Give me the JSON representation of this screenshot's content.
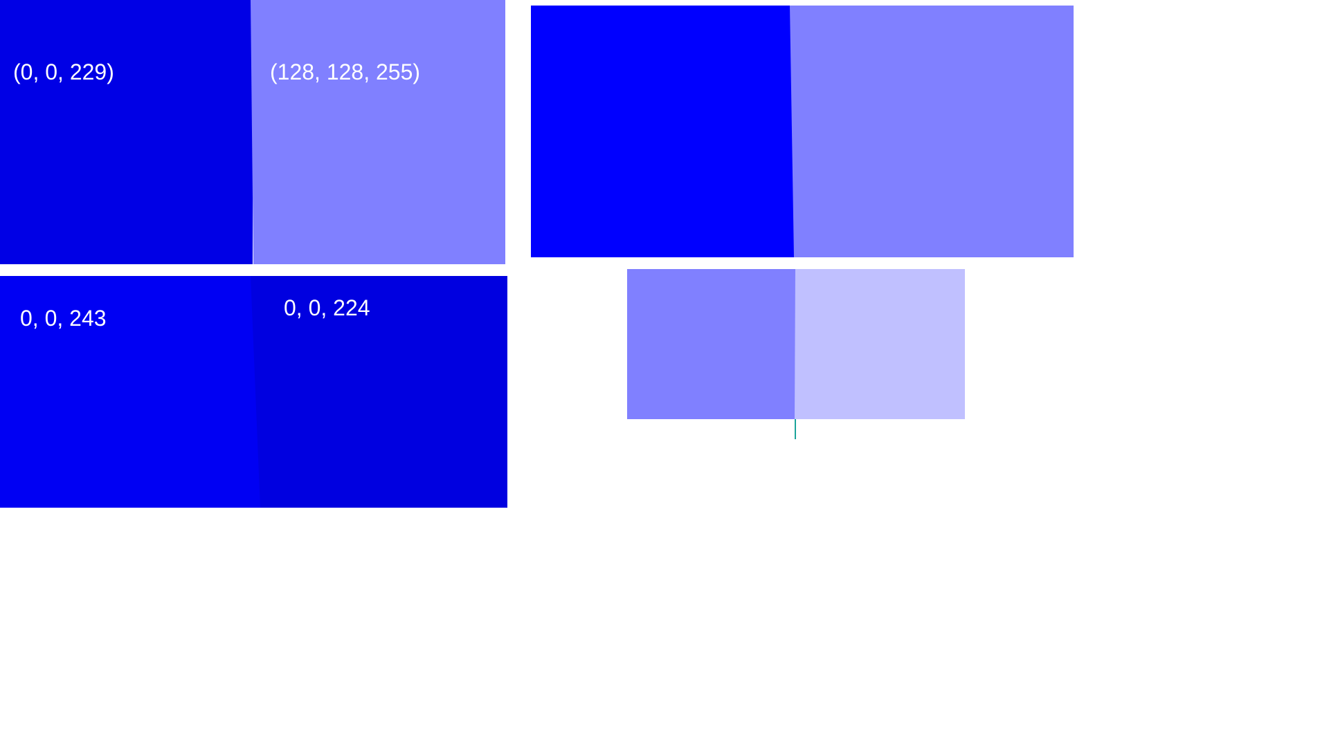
{
  "swatches": {
    "top_left": {
      "label": "(0, 0, 229)",
      "color": "#0000e5"
    },
    "top_right": {
      "label": "(128, 128, 255)",
      "color": "#8080ff"
    },
    "bottom_left": {
      "label": "0, 0, 243",
      "color": "#0000f3"
    },
    "bottom_right": {
      "label": "0, 0, 224",
      "color": "#0000e0"
    },
    "large_left": {
      "color": "#0000ff"
    },
    "large_right": {
      "color": "#8080ff"
    },
    "small_left": {
      "color": "#8080ff"
    },
    "small_right": {
      "color": "#c0c0ff"
    }
  },
  "cursor_color": "#1aa39a"
}
